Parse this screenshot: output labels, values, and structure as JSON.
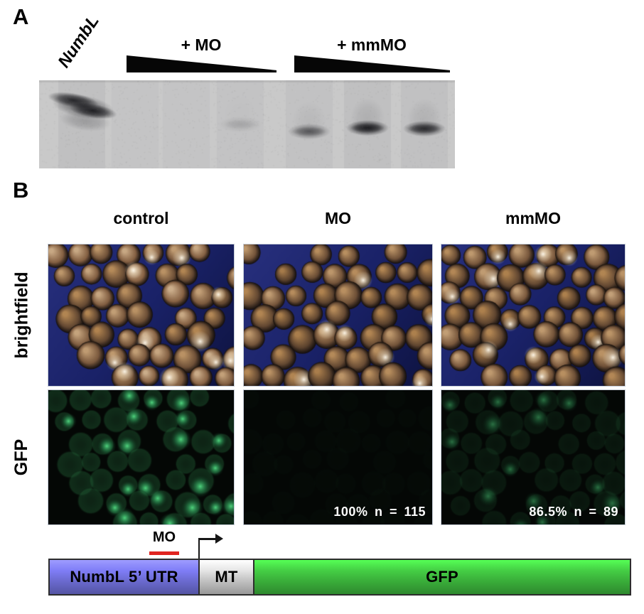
{
  "panel_a": {
    "label": "A",
    "probe_label": "NumbL",
    "group1_label": "+ MO",
    "group2_label": "+ mmMO",
    "lanes": [
      {
        "name": "NumbL probe alone",
        "band_intensity": 0.92
      },
      {
        "name": "+MO high dose",
        "band_intensity": 0
      },
      {
        "name": "+MO mid dose",
        "band_intensity": 0
      },
      {
        "name": "+MO low dose",
        "band_intensity": 0.12
      },
      {
        "name": "+mmMO high dose",
        "band_intensity": 0.5
      },
      {
        "name": "+mmMO mid dose",
        "band_intensity": 0.95
      },
      {
        "name": "+mmMO low dose",
        "band_intensity": 0.82
      }
    ]
  },
  "panel_b": {
    "label": "B",
    "columns": [
      "control",
      "MO",
      "mmMO"
    ],
    "row_labels": [
      "brightfield",
      "GFP"
    ],
    "stats": {
      "mo": "100% n = 115",
      "mmmo": "86.5% n = 89"
    }
  },
  "construct": {
    "mo_label": "MO",
    "underline_color": "#e02420",
    "boxes": [
      {
        "label": "NumbL 5’ UTR",
        "color": "#6f6ed7"
      },
      {
        "label": "MT",
        "color": "#c8c8c8"
      },
      {
        "label": "GFP",
        "color": "#3cb43c"
      }
    ]
  },
  "colors": {
    "brightfield_bg": "#1a2268",
    "gfp_bg": "#040705",
    "stat_text": "#ffffff"
  }
}
